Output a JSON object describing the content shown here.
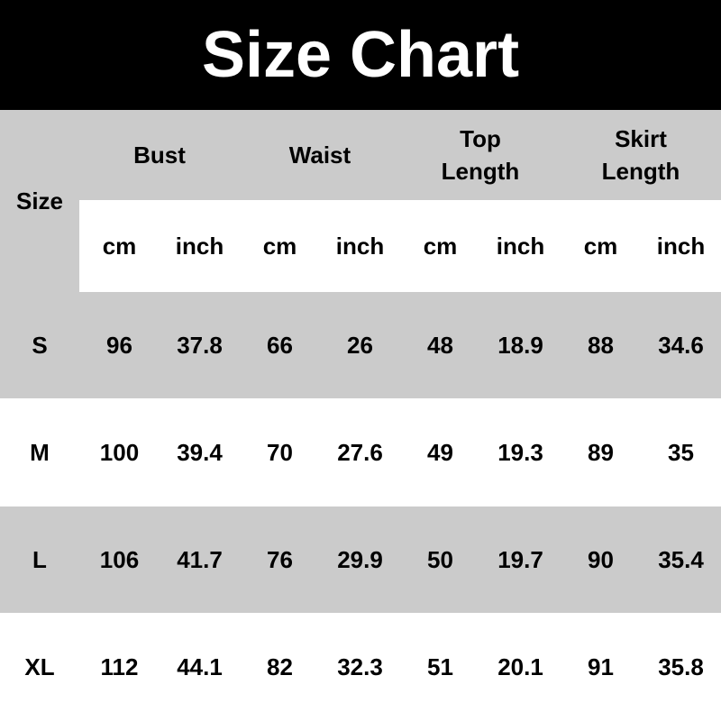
{
  "title": "Size Chart",
  "size_header": "Size",
  "groups": [
    "Bust",
    "Waist",
    "Top\nLength",
    "Skirt\nLength"
  ],
  "units": [
    "cm",
    "inch",
    "cm",
    "inch",
    "cm",
    "inch",
    "cm",
    "inch"
  ],
  "rows": [
    {
      "size": "S",
      "values": [
        "96",
        "37.8",
        "66",
        "26",
        "48",
        "18.9",
        "88",
        "34.6"
      ]
    },
    {
      "size": "M",
      "values": [
        "100",
        "39.4",
        "70",
        "27.6",
        "49",
        "19.3",
        "89",
        "35"
      ]
    },
    {
      "size": "L",
      "values": [
        "106",
        "41.7",
        "76",
        "29.9",
        "50",
        "19.7",
        "90",
        "35.4"
      ]
    },
    {
      "size": "XL",
      "values": [
        "112",
        "44.1",
        "82",
        "32.3",
        "51",
        "20.1",
        "91",
        "35.8"
      ]
    }
  ],
  "colors": {
    "header_bg": "#000000",
    "band_gray": "#cbcbcb",
    "band_white": "#ffffff"
  }
}
